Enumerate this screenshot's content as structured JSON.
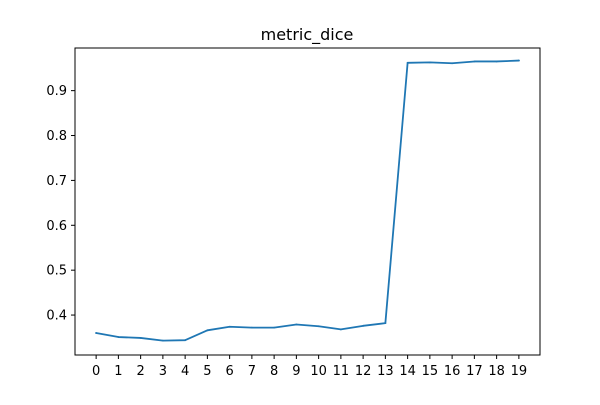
{
  "chart_data": {
    "type": "line",
    "title": "metric_dice",
    "xlabel": "",
    "ylabel": "",
    "x": [
      0,
      1,
      2,
      3,
      4,
      5,
      6,
      7,
      8,
      9,
      10,
      11,
      12,
      13,
      14,
      15,
      16,
      17,
      18,
      19
    ],
    "series": [
      {
        "values": [
          0.36,
          0.351,
          0.349,
          0.343,
          0.344,
          0.366,
          0.374,
          0.372,
          0.372,
          0.379,
          0.375,
          0.368,
          0.376,
          0.382,
          0.962,
          0.963,
          0.961,
          0.965,
          0.965,
          0.967
        ],
        "color": "#1f77b4"
      }
    ],
    "xlim": [
      -0.95,
      19.95
    ],
    "ylim": [
      0.311,
      0.995
    ],
    "xticks": [
      "0",
      "1",
      "2",
      "3",
      "4",
      "5",
      "6",
      "7",
      "8",
      "9",
      "10",
      "11",
      "12",
      "13",
      "14",
      "15",
      "16",
      "17",
      "18",
      "19"
    ],
    "yticks": [
      "0.4",
      "0.5",
      "0.6",
      "0.7",
      "0.8",
      "0.9"
    ],
    "ytick_values": [
      0.4,
      0.5,
      0.6,
      0.7,
      0.8,
      0.9
    ],
    "grid": false,
    "legend": "none"
  }
}
